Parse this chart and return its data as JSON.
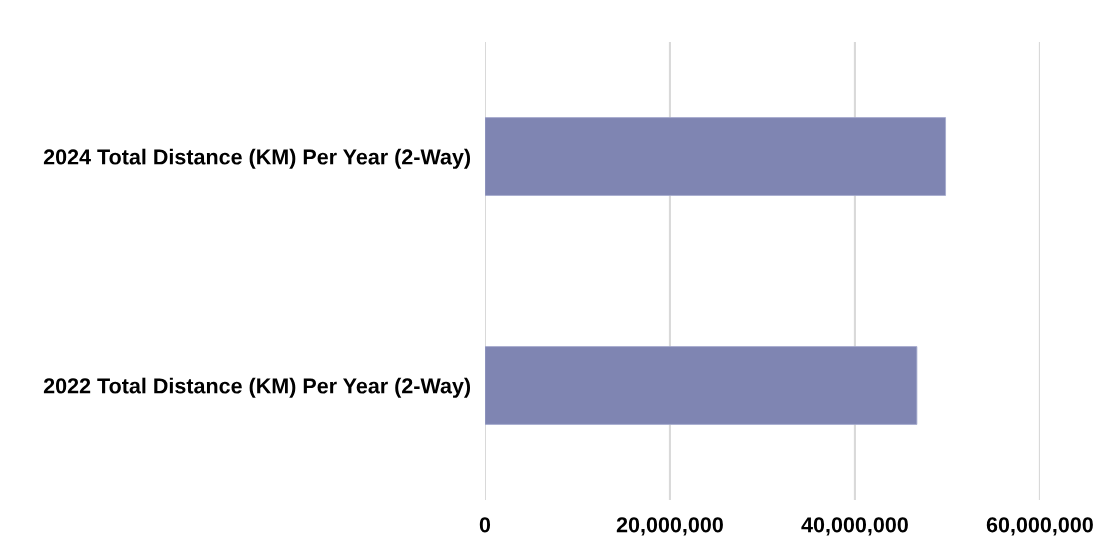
{
  "chart_data": {
    "type": "bar",
    "orientation": "horizontal",
    "categories": [
      "2024 Total Distance (KM) Per Year (2-Way)",
      "2022 Total Distance (KM) Per Year (2-Way)"
    ],
    "values": [
      49800000,
      46700000
    ],
    "color": "#7f85b2",
    "xlim": [
      0,
      60000000
    ],
    "xticks": [
      0,
      {
        "value": 20000000,
        "label": "20,000,000"
      },
      {
        "value": 40000000,
        "label": "40,000,000"
      },
      {
        "value": 60000000,
        "label": "60,000,000"
      }
    ],
    "grid": "x"
  }
}
